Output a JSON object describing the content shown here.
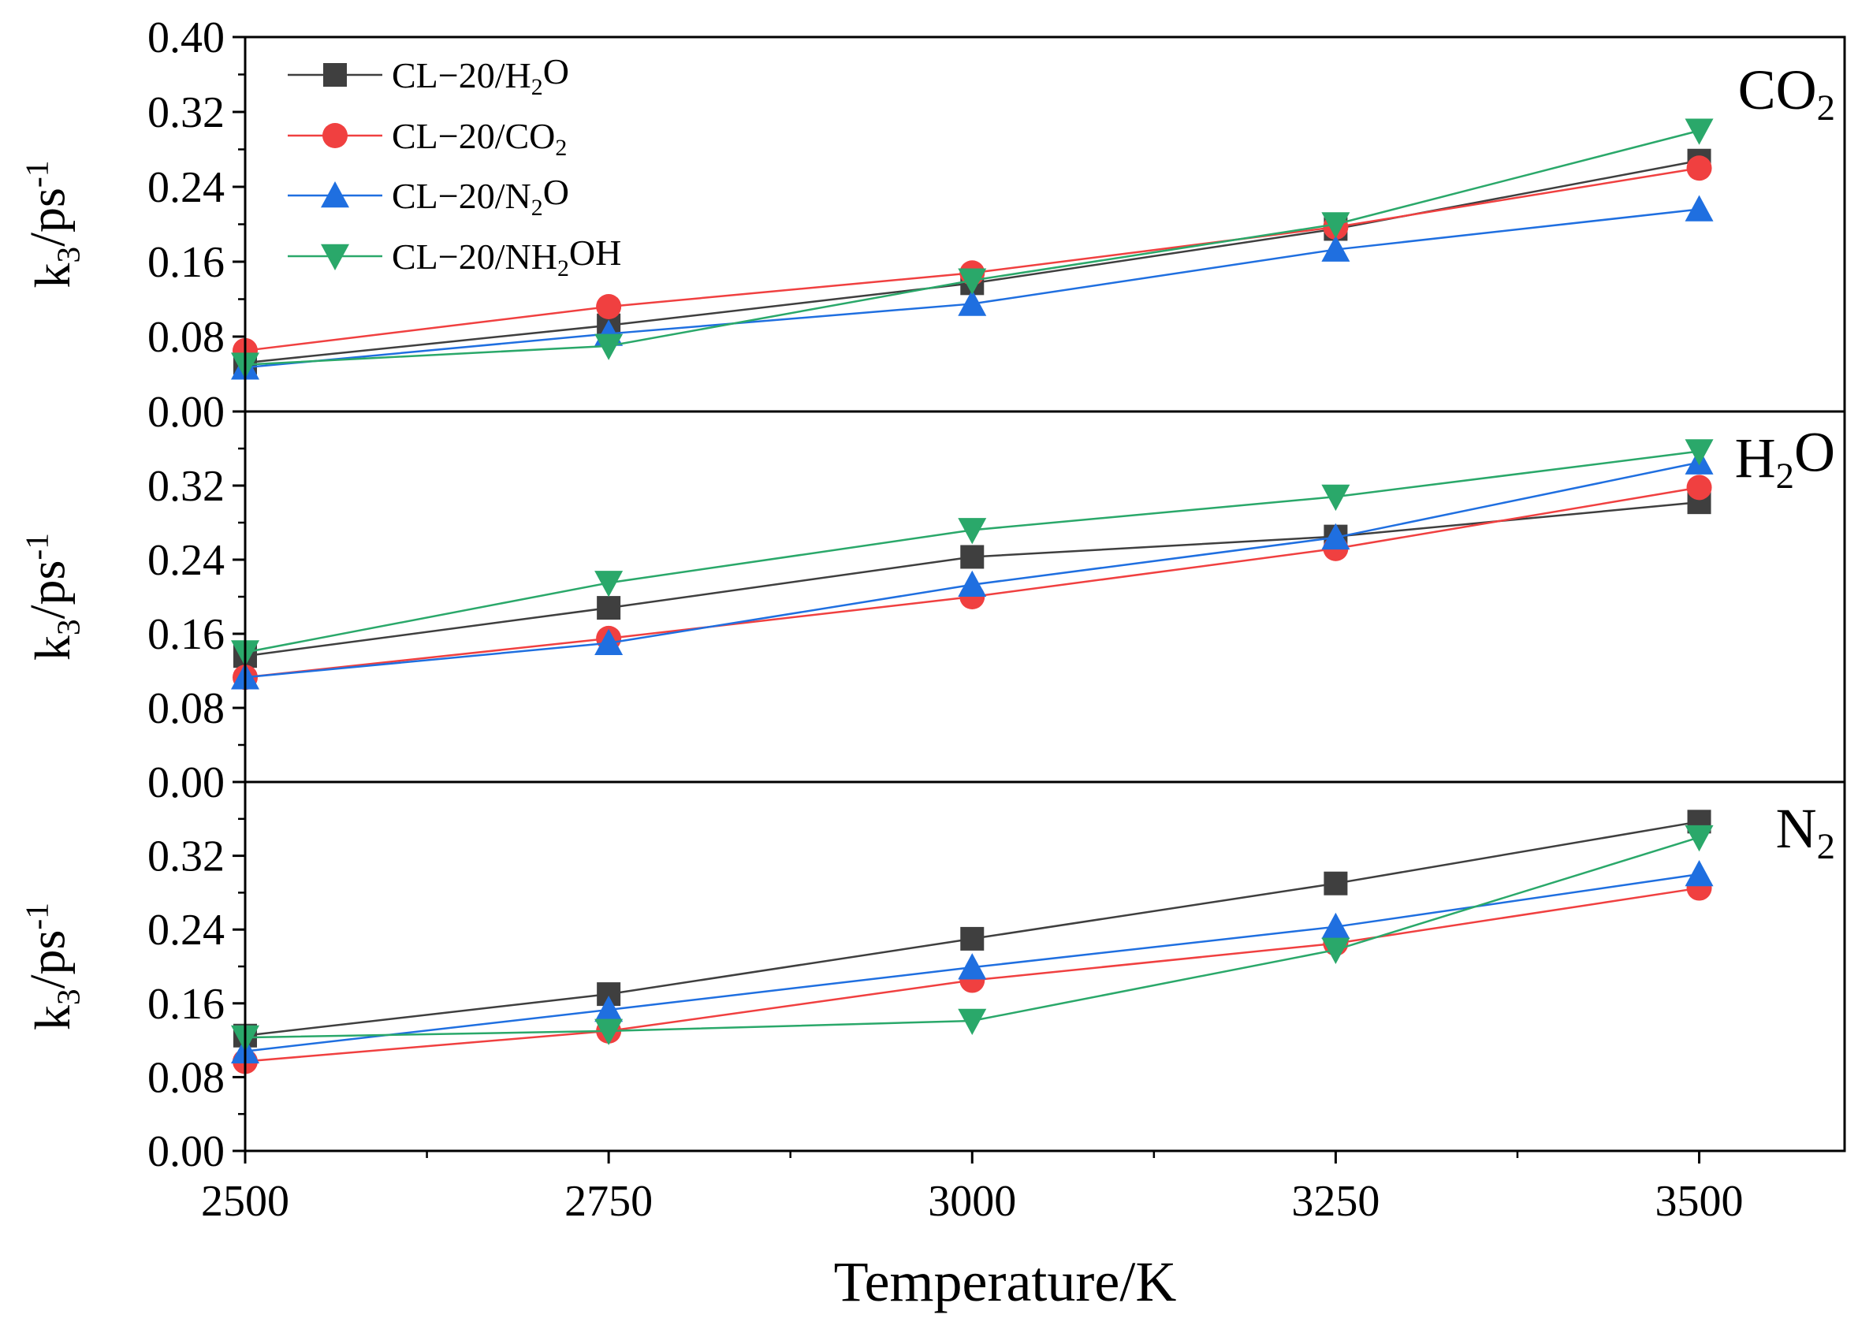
{
  "chart_data": {
    "type": "line",
    "x_label": {
      "main": "Temperature/K"
    },
    "x_ticks": [
      2500,
      2750,
      3000,
      3250,
      3500
    ],
    "xlim": [
      2500,
      3600
    ],
    "ylim": [
      0.0,
      0.4
    ],
    "y_label": {
      "base": "k",
      "sub": "3",
      "mid": "/ps",
      "sup": "-1"
    },
    "legend_position": "top-left",
    "series_styles": [
      {
        "color": "#3f3f3f",
        "marker": "square"
      },
      {
        "color": "#f04040",
        "marker": "circle"
      },
      {
        "color": "#1f6fe0",
        "marker": "triangle-up"
      },
      {
        "color": "#2aa86a",
        "marker": "triangle-down"
      }
    ],
    "legend": [
      {
        "label_pre": "CL−20/H",
        "label_sub": "2",
        "label_post": "O"
      },
      {
        "label_pre": "CL−20/CO",
        "label_sub": "2",
        "label_post": ""
      },
      {
        "label_pre": "CL−20/N",
        "label_sub": "2",
        "label_post": "O"
      },
      {
        "label_pre": "CL−20/NH",
        "label_sub": "2",
        "label_post": "OH"
      }
    ],
    "panels": [
      {
        "tag_pre": "CO",
        "tag_sub": "2",
        "tag_post": "",
        "y_ticks": [
          0.0,
          0.08,
          0.16,
          0.24,
          0.32,
          0.4
        ],
        "y_tick_labels": [
          "0.00",
          "0.08",
          "0.16",
          "0.24",
          "0.32",
          "0.40"
        ],
        "series": [
          {
            "values": [
              0.052,
              0.092,
              0.137,
              0.195,
              0.268
            ]
          },
          {
            "values": [
              0.065,
              0.112,
              0.148,
              0.197,
              0.26
            ]
          },
          {
            "values": [
              0.047,
              0.083,
              0.115,
              0.173,
              0.216
            ]
          },
          {
            "values": [
              0.05,
              0.07,
              0.14,
              0.2,
              0.3
            ]
          }
        ]
      },
      {
        "tag_pre": "H",
        "tag_sub": "2",
        "tag_post": "O",
        "y_ticks": [
          0.0,
          0.08,
          0.16,
          0.24,
          0.32
        ],
        "y_tick_labels": [
          "0.00",
          "0.08",
          "0.16",
          "0.24",
          "0.32"
        ],
        "series": [
          {
            "values": [
              0.136,
              0.188,
              0.243,
              0.265,
              0.302
            ]
          },
          {
            "values": [
              0.113,
              0.155,
              0.2,
              0.252,
              0.318
            ]
          },
          {
            "values": [
              0.113,
              0.15,
              0.213,
              0.264,
              0.345
            ]
          },
          {
            "values": [
              0.14,
              0.215,
              0.272,
              0.308,
              0.357
            ]
          }
        ]
      },
      {
        "tag_pre": "N",
        "tag_sub": "2",
        "tag_post": "",
        "y_ticks": [
          0.0,
          0.08,
          0.16,
          0.24,
          0.32
        ],
        "y_tick_labels": [
          "0.00",
          "0.08",
          "0.16",
          "0.24",
          "0.32"
        ],
        "series": [
          {
            "values": [
              0.125,
              0.17,
              0.23,
              0.29,
              0.357
            ]
          },
          {
            "values": [
              0.097,
              0.13,
              0.185,
              0.225,
              0.285
            ]
          },
          {
            "values": [
              0.108,
              0.153,
              0.199,
              0.243,
              0.3
            ]
          },
          {
            "values": [
              0.123,
              0.13,
              0.141,
              0.218,
              0.34
            ]
          }
        ]
      }
    ]
  }
}
